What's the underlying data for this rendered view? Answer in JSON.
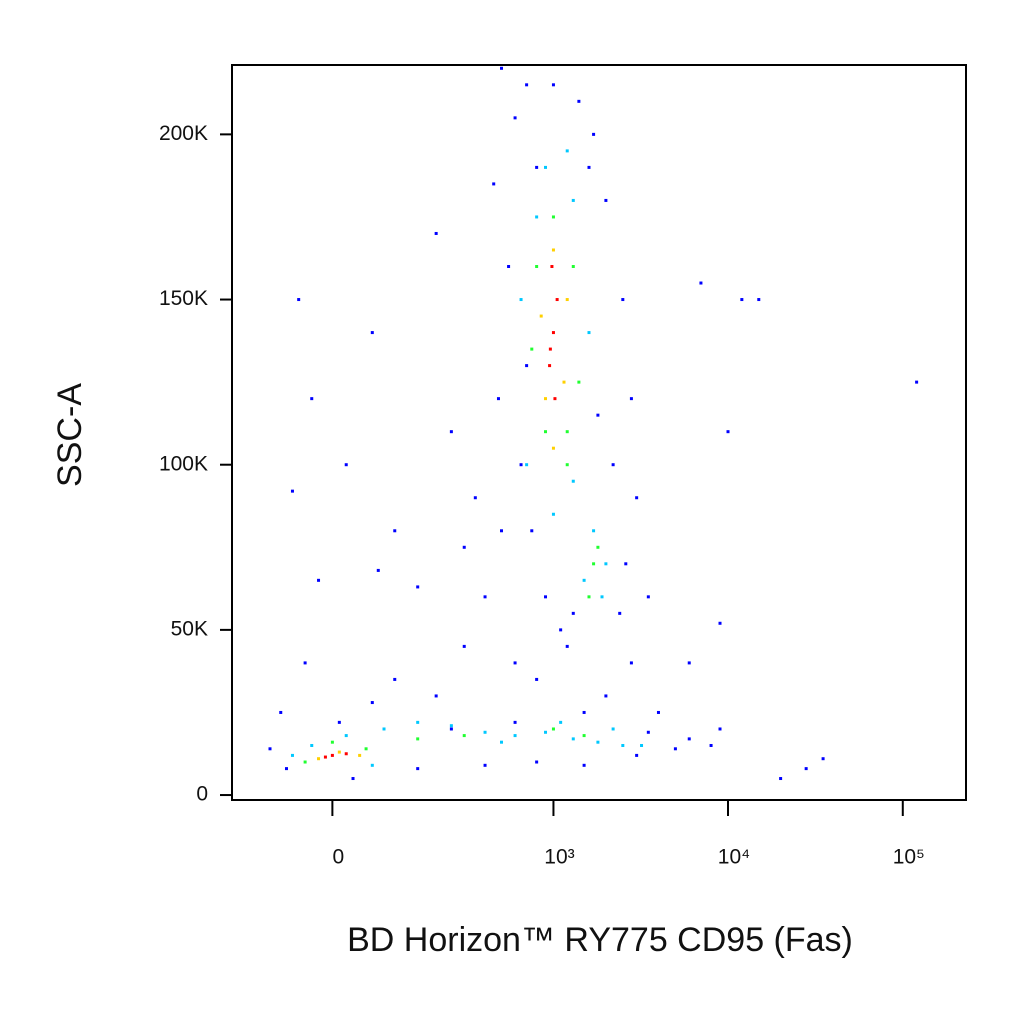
{
  "chart_data": {
    "type": "scatter",
    "x_label": "BD Horizon™ RY775 CD95 (Fas)",
    "y_label": "SSC-A",
    "xscale": "asinh",
    "xlim": [
      -190,
      230000
    ],
    "ylim": [
      -1500,
      221000
    ],
    "xticks": [
      0,
      {
        "value": 1000,
        "label": "10³"
      },
      {
        "value": 10000,
        "label": "10⁴"
      },
      {
        "value": 100000,
        "label": "10⁵"
      }
    ],
    "yticks": [
      0,
      {
        "value": 50000,
        "label": "50K"
      },
      {
        "value": 100000,
        "label": "100K"
      },
      {
        "value": 150000,
        "label": "150K"
      },
      {
        "value": 200000,
        "label": "200K"
      }
    ],
    "series": [
      {
        "color": "#0000ff",
        "x": [
          -50,
          -30,
          20,
          -60,
          60,
          200,
          150,
          300,
          500,
          450,
          600,
          700,
          1400,
          1700,
          2000,
          2500,
          2800,
          3000,
          3500,
          2800,
          400,
          300,
          600,
          800,
          1200,
          200,
          100,
          -40,
          -80,
          -100,
          -70,
          30,
          150,
          400,
          800,
          1500,
          3000,
          5000,
          6000,
          8000,
          9000,
          4000,
          2000,
          700,
          650,
          550,
          480,
          750,
          900,
          1100,
          2200,
          1800,
          2600,
          2400,
          1300,
          7000,
          10000,
          15000,
          120000,
          28000,
          35000,
          12000,
          9000,
          6000,
          250,
          350,
          100,
          -20,
          70,
          500,
          800,
          1000,
          1600,
          20000,
          10,
          60,
          250,
          600,
          1500,
          3500
        ],
        "y": [
          150000,
          120000,
          100000,
          92000,
          140000,
          170000,
          63000,
          75000,
          220000,
          185000,
          205000,
          215000,
          210000,
          200000,
          180000,
          150000,
          120000,
          90000,
          60000,
          40000,
          60000,
          45000,
          40000,
          35000,
          45000,
          30000,
          35000,
          40000,
          25000,
          14000,
          8000,
          5000,
          8000,
          9000,
          10000,
          9000,
          12000,
          14000,
          17000,
          15000,
          20000,
          25000,
          30000,
          130000,
          100000,
          160000,
          120000,
          80000,
          60000,
          50000,
          100000,
          115000,
          70000,
          55000,
          55000,
          155000,
          110000,
          150000,
          125000,
          8000,
          11000,
          150000,
          52000,
          40000,
          110000,
          90000,
          80000,
          65000,
          68000,
          80000,
          190000,
          215000,
          190000,
          5000,
          22000,
          28000,
          20000,
          22000,
          25000,
          19000
        ]
      },
      {
        "color": "#00c8ff",
        "x": [
          -30,
          20,
          80,
          150,
          250,
          400,
          600,
          900,
          1300,
          1800,
          2500,
          3200,
          700,
          1300,
          800,
          1300,
          650,
          1600,
          1700,
          2000,
          1900,
          1500,
          900,
          1200,
          1000,
          -60,
          60,
          500,
          2200,
          1100
        ],
        "y": [
          15000,
          18000,
          20000,
          22000,
          21000,
          19000,
          18000,
          19000,
          17000,
          16000,
          15000,
          15000,
          100000,
          95000,
          175000,
          180000,
          150000,
          140000,
          80000,
          70000,
          60000,
          65000,
          190000,
          195000,
          85000,
          12000,
          9000,
          16000,
          20000,
          22000
        ]
      },
      {
        "color": "#20ff30",
        "x": [
          0,
          50,
          -40,
          150,
          300,
          800,
          1300,
          900,
          1200,
          750,
          1400,
          1000,
          1700,
          1800,
          1600,
          1000,
          1500,
          1200
        ],
        "y": [
          16000,
          14000,
          10000,
          17000,
          18000,
          160000,
          160000,
          110000,
          110000,
          135000,
          125000,
          175000,
          70000,
          75000,
          60000,
          20000,
          18000,
          100000
        ]
      },
      {
        "color": "#ffd000",
        "x": [
          10,
          -20,
          40,
          850,
          1200,
          900,
          1150,
          1000,
          1000
        ],
        "y": [
          13000,
          11000,
          12000,
          145000,
          150000,
          120000,
          125000,
          165000,
          105000
        ]
      },
      {
        "color": "#ff0000",
        "x": [
          0,
          -10,
          20,
          1000,
          950,
          1050,
          980,
          1020,
          960
        ],
        "y": [
          12000,
          11500,
          12500,
          140000,
          130000,
          150000,
          160000,
          120000,
          135000
        ]
      }
    ]
  }
}
